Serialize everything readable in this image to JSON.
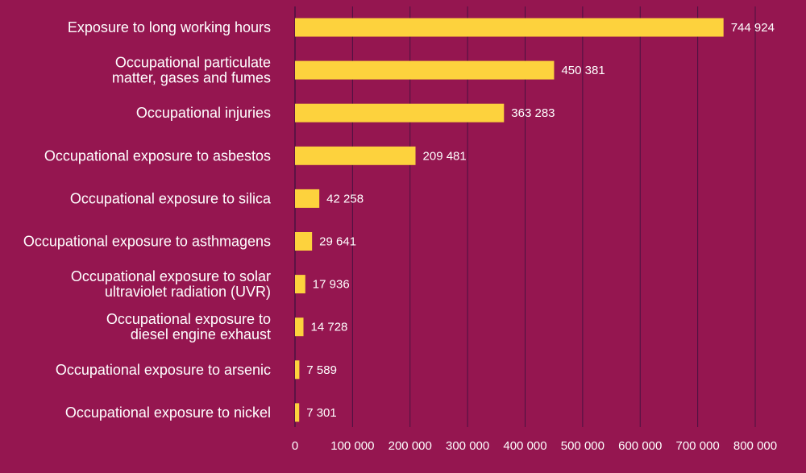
{
  "colors": {
    "background": "#951650",
    "bar": "#fdd23d",
    "text": "#ffffff",
    "grid": "#4a1240"
  },
  "chart_data": {
    "type": "bar",
    "orientation": "horizontal",
    "title": "",
    "xlabel": "",
    "ylabel": "",
    "xlim": [
      0,
      800000
    ],
    "grid": true,
    "categories": [
      [
        "Exposure to long working hours"
      ],
      [
        "Occupational particulate",
        "matter, gases and fumes"
      ],
      [
        "Occupational injuries"
      ],
      [
        "Occupational exposure to asbestos"
      ],
      [
        "Occupational exposure to silica"
      ],
      [
        "Occupational exposure to asthmagens"
      ],
      [
        "Occupational exposure to solar",
        "ultraviolet radiation (UVR)"
      ],
      [
        "Occupational exposure to",
        "diesel engine exhaust"
      ],
      [
        "Occupational exposure to arsenic"
      ],
      [
        "Occupational exposure to nickel"
      ]
    ],
    "values": [
      744924,
      450381,
      363283,
      209481,
      42258,
      29641,
      17936,
      14728,
      7589,
      7301
    ],
    "value_labels": [
      "744 924",
      "450 381",
      "363 283",
      "209 481",
      "42 258",
      "29 641",
      "17 936",
      "14 728",
      "7 589",
      "7 301"
    ],
    "ticks": [
      0,
      100000,
      200000,
      300000,
      400000,
      500000,
      600000,
      700000,
      800000
    ],
    "tick_labels": [
      "0",
      "100 000",
      "200 000",
      "300 000",
      "400 000",
      "500 000",
      "600 000",
      "700 000",
      "800 000"
    ]
  }
}
